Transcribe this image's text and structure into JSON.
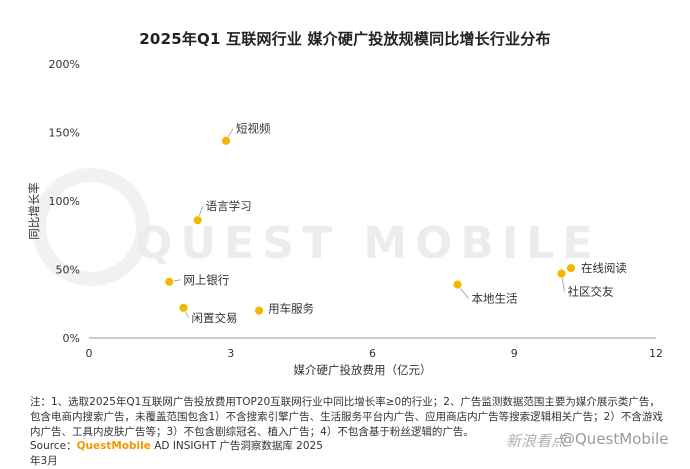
{
  "chart_data": {
    "type": "scatter",
    "title": "2025年Q1 互联网行业 媒介硬广投放规模同比增长行业分布",
    "xlabel": "媒介硬广投放费用（亿元）",
    "ylabel": "同比增长率",
    "xlim": [
      0,
      12
    ],
    "ylim": [
      0,
      200
    ],
    "x_ticks": [
      "0",
      "3",
      "6",
      "9",
      "12"
    ],
    "x_tick_values": [
      0,
      3,
      6,
      9,
      12
    ],
    "y_ticks": [
      "0%",
      "50%",
      "100%",
      "150%",
      "200%"
    ],
    "y_tick_values": [
      0,
      50,
      100,
      150,
      200
    ],
    "grid": false,
    "point_color": "#f5b800",
    "points": [
      {
        "label": "短视频",
        "x": 2.9,
        "y": 144
      },
      {
        "label": "语言学习",
        "x": 2.3,
        "y": 86
      },
      {
        "label": "网上银行",
        "x": 1.7,
        "y": 41
      },
      {
        "label": "闲置交易",
        "x": 2.0,
        "y": 22
      },
      {
        "label": "用车服务",
        "x": 3.6,
        "y": 20
      },
      {
        "label": "本地生活",
        "x": 7.8,
        "y": 39
      },
      {
        "label": "在线阅读",
        "x": 10.2,
        "y": 51
      },
      {
        "label": "社区交友",
        "x": 10.0,
        "y": 47
      }
    ]
  },
  "footnote": "注：1、选取2025年Q1互联网广告投放费用TOP20互联网行业中同比增长率≥0的行业；2、广告监测数据范围主要为媒介展示类广告，包含电商内搜索广告，未覆盖范围包含1）不含搜索引擎广告、生活服务平台内广告、应用商店内广告等搜索逻辑相关广告；2）不含游戏内广告、工具内皮肤广告等；3）不包含剧综冠名、植入广告；4）不包含基于粉丝逻辑的广告。",
  "source": {
    "prefix": "Source：",
    "brand": "QuestMobile",
    "rest": " AD INSIGHT 广告洞察数据库 2025年3月"
  },
  "watermarks": {
    "background": "QUEST MOBILE",
    "sina": "新浪看点",
    "handle": "@QuestMobile"
  }
}
